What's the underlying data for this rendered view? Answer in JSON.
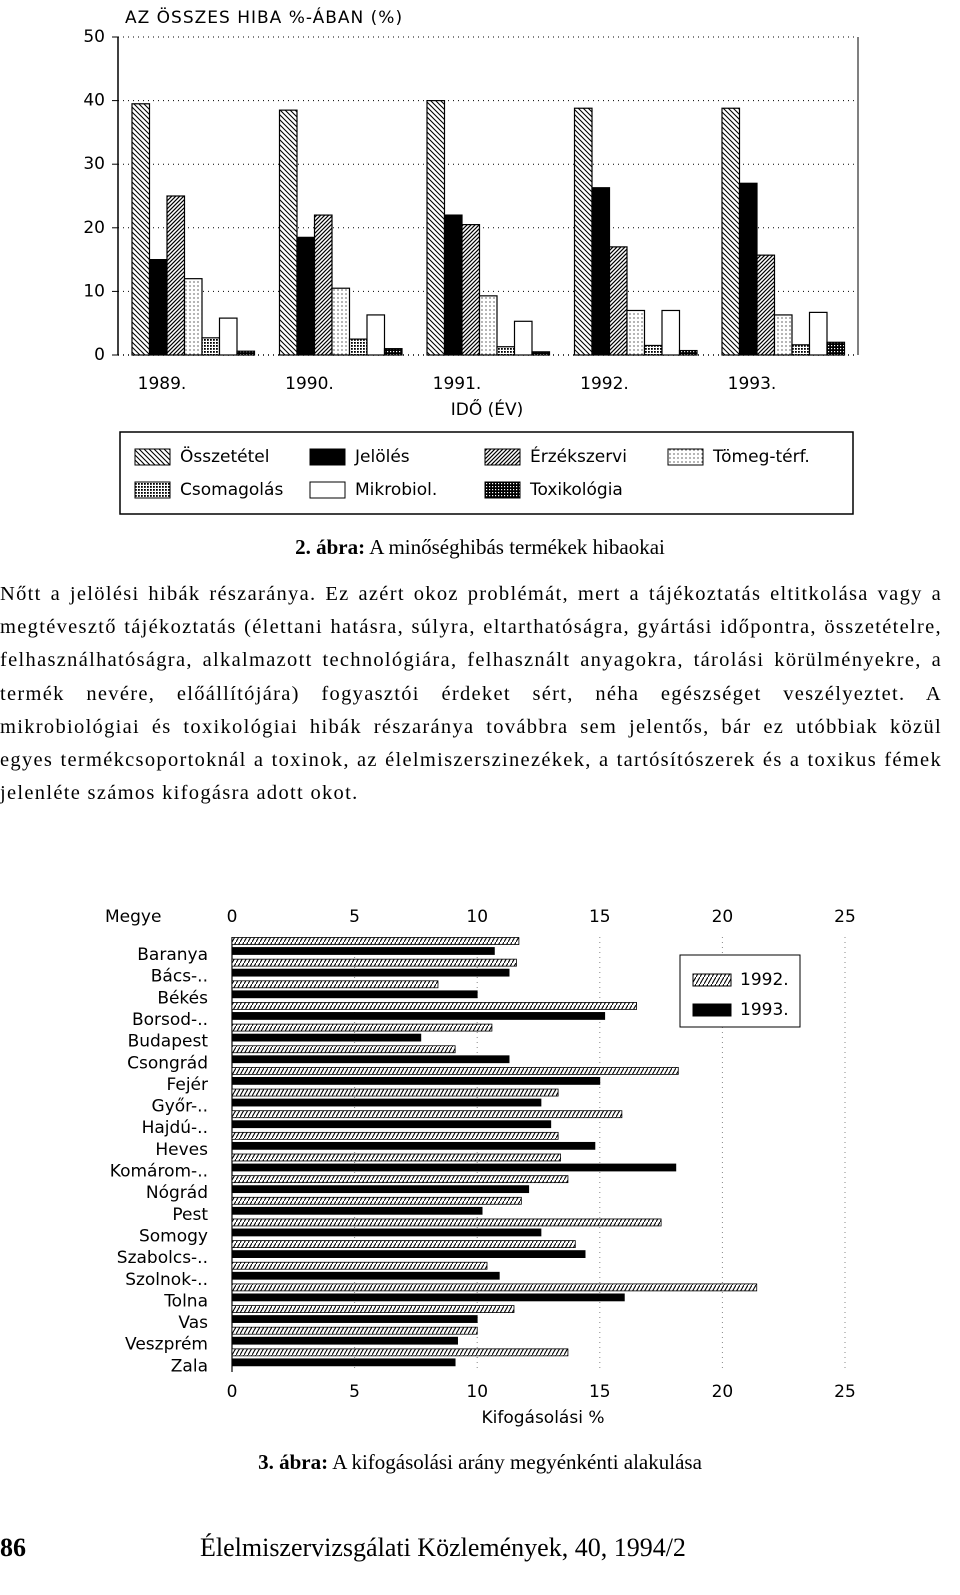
{
  "chart_data": [
    {
      "type": "bar",
      "title": "AZ ÖSSZES HIBA %-ÁBAN (%)",
      "x_label": "IDŐ (ÉV)",
      "categories": [
        "1989.",
        "1990.",
        "1991.",
        "1992.",
        "1993."
      ],
      "ylim": [
        0,
        50
      ],
      "yticks": [
        0,
        10,
        20,
        30,
        40,
        50
      ],
      "grid": true,
      "legend": "bottom",
      "series": [
        {
          "name": "Összetétel",
          "pattern": "backslash",
          "values": [
            39.5,
            38.5,
            40,
            38.8,
            38.8
          ]
        },
        {
          "name": "Jelölés",
          "pattern": "solid",
          "values": [
            15,
            18.5,
            22,
            26.3,
            27
          ]
        },
        {
          "name": "Érzékszervi",
          "pattern": "slash",
          "values": [
            25,
            22,
            20.5,
            17,
            15.7
          ]
        },
        {
          "name": "Tömeg-térf.",
          "pattern": "dots",
          "values": [
            12,
            10.5,
            9.3,
            7,
            6.3
          ]
        },
        {
          "name": "Csomagolás",
          "pattern": "grid",
          "values": [
            2.7,
            2.5,
            1.3,
            1.5,
            1.6
          ]
        },
        {
          "name": "Mikrobiol.",
          "pattern": "blank",
          "values": [
            5.8,
            6.3,
            5.3,
            7,
            6.7
          ]
        },
        {
          "name": "Toxikológia",
          "pattern": "check",
          "values": [
            0.6,
            1,
            0.5,
            0.7,
            2
          ]
        }
      ]
    },
    {
      "type": "barh",
      "y_label": "Megye",
      "x_label": "Kifogásolási %",
      "categories": [
        "Baranya",
        "Bács-..",
        "Békés",
        "Borsod-..",
        "Budapest",
        "Csongrád",
        "Fejér",
        "Győr-..",
        "Hajdú-..",
        "Heves",
        "Komárom-..",
        "Nógrád",
        "Pest",
        "Somogy",
        "Szabolcs-..",
        "Szolnok-..",
        "Tolna",
        "Vas",
        "Veszprém",
        "Zala"
      ],
      "xlim": [
        0,
        25
      ],
      "xticks": [
        0,
        5,
        10,
        15,
        20,
        25
      ],
      "grid": true,
      "legend": "upper right",
      "series": [
        {
          "name": "1992.",
          "pattern": "hatch",
          "values": [
            11.7,
            11.6,
            8.4,
            16.5,
            10.6,
            9.1,
            18.2,
            13.3,
            15.9,
            13.3,
            13.4,
            13.7,
            11.8,
            17.5,
            14.0,
            10.4,
            21.4,
            11.5,
            10.0,
            13.7
          ]
        },
        {
          "name": "1993.",
          "pattern": "solid",
          "values": [
            10.7,
            11.3,
            10.0,
            15.2,
            7.7,
            11.3,
            15.0,
            12.6,
            13.0,
            14.8,
            18.1,
            12.1,
            10.2,
            12.6,
            14.4,
            10.9,
            16.0,
            10.0,
            9.2,
            9.1
          ]
        }
      ]
    }
  ],
  "figure2_caption": {
    "label": "2. ábra:",
    "text": "A minőséghibás termékek hibaokai"
  },
  "paragraph": "Nőtt a jelölési hibák részaránya. Ez azért okoz problémát, mert a tájékoztatás eltitkolása vagy a megtévesztő tájékoztatás (élettani hatásra, súlyra, eltarthatóságra, gyártási időpontra, összetételre, felhasználhatóságra, alkalmazott technológiára, felhasznált anyagokra, tárolási körülményekre, a termék nevére, előállítójára) fogyasztói érdeket sért, néha egészséget veszélyeztet. A mikrobiológiai és toxikológiai hibák részaránya továbbra sem jelentős, bár ez utóbbiak közül egyes termékcsoportoknál a toxinok, az élelmiszerszinezékek, a tartósítószerek és a toxikus fémek jelenléte számos kifogásra adott okot.",
  "figure3_caption": {
    "label": "3. ábra:",
    "text": "A kifogásolási arány megyénkénti alakulása"
  },
  "footer": {
    "page": "86",
    "journal": "Élelmiszervizsgálati Közlemények, 40, 1994/2"
  }
}
